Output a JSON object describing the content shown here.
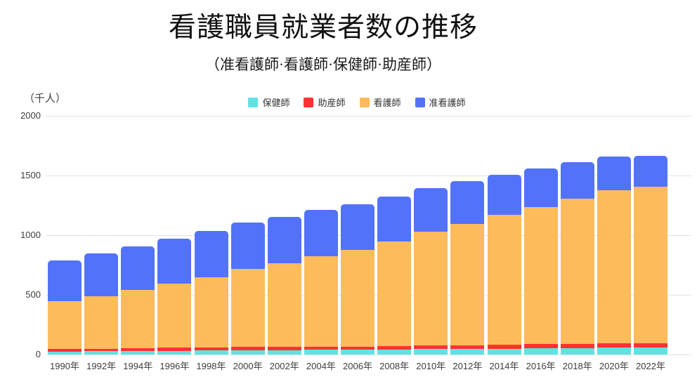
{
  "title": "看護職員就業者数の推移",
  "subtitle": "（准看護師·看護師·保健師·助産師）",
  "unit_label": "（千人）",
  "colors": {
    "hokenshi": "#5fe2e2",
    "josanshi": "#ff3232",
    "kangoshi": "#fdbb5c",
    "jun_kangoshi": "#5372fa",
    "gridline": "#e3e3e3",
    "axis_text": "#3d3d3d"
  },
  "chart_data": {
    "type": "bar",
    "stacked": true,
    "title": "看護職員就業者数の推移",
    "subtitle": "（准看護師·看護師·保健師·助産師）",
    "ylabel": "（千人）",
    "xlabel": "",
    "ylim": [
      0,
      2000
    ],
    "yticks": [
      0,
      500,
      1000,
      1500,
      2000
    ],
    "grid": true,
    "legend_position": "top",
    "categories": [
      "1990年",
      "1992年",
      "1994年",
      "1996年",
      "1998年",
      "2000年",
      "2002年",
      "2004年",
      "2006年",
      "2008年",
      "2010年",
      "2012年",
      "2014年",
      "2016年",
      "2018年",
      "2020年",
      "2022年"
    ],
    "series": [
      {
        "name": "保健師",
        "key": "hokenshi",
        "color": "#5fe2e2",
        "values": [
          25,
          27,
          29,
          32,
          34,
          37,
          38,
          39,
          40,
          43,
          45,
          47,
          48,
          51,
          53,
          56,
          58
        ]
      },
      {
        "name": "助産師",
        "key": "josanshi",
        "color": "#ff3232",
        "values": [
          23,
          23,
          23,
          24,
          24,
          25,
          24,
          25,
          26,
          28,
          30,
          32,
          34,
          36,
          37,
          38,
          38
        ]
      },
      {
        "name": "看護師",
        "key": "kangoshi",
        "color": "#fdbb5c",
        "values": [
          402,
          441,
          489,
          538,
          590,
          654,
          704,
          760,
          812,
          877,
          953,
          1016,
          1087,
          1149,
          1219,
          1281,
          1312
        ]
      },
      {
        "name": "准看護師",
        "key": "jun_kangoshi",
        "color": "#5372fa",
        "values": [
          341,
          355,
          365,
          375,
          385,
          389,
          386,
          386,
          382,
          375,
          368,
          358,
          340,
          323,
          304,
          285,
          254
        ]
      }
    ]
  }
}
